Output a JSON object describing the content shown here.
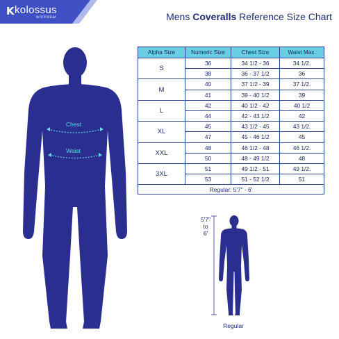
{
  "brand": {
    "mark": "K",
    "name": "kolossus",
    "subtitle": "workwear",
    "band_color": "#3f4fc4"
  },
  "title": {
    "prefix": "Mens ",
    "bold": "Coveralls",
    "suffix": " Reference Size Chart"
  },
  "table": {
    "headers": [
      "Alpha Size",
      "Numeric Size",
      "Chest Size",
      "Waist Max."
    ],
    "groups": [
      {
        "alpha": "S",
        "rows": [
          [
            "36",
            "34 1/2 - 36",
            "34 1/2."
          ],
          [
            "38",
            "36 - 37 1/2",
            "36"
          ]
        ]
      },
      {
        "alpha": "M",
        "rows": [
          [
            "40",
            "37 1/2 - 39",
            "37 1/2."
          ],
          [
            "41",
            "39 - 40 1/2",
            "39"
          ]
        ]
      },
      {
        "alpha": "L",
        "rows": [
          [
            "42",
            "40 1/2 - 42",
            "40 1/2"
          ],
          [
            "44",
            "42 - 43 1/2",
            "42"
          ]
        ]
      },
      {
        "alpha": "XL",
        "rows": [
          [
            "45",
            "43 1/2 - 45",
            "43 1/2."
          ],
          [
            "47",
            "45 - 46 1/2",
            "45"
          ]
        ]
      },
      {
        "alpha": "XXL",
        "rows": [
          [
            "48",
            "46 1/2 - 48",
            "46 1/2."
          ],
          [
            "50",
            "48 - 49 1/2",
            "48"
          ]
        ]
      },
      {
        "alpha": "3XL",
        "rows": [
          [
            "51",
            "49 1/2 - 51",
            "49 1/2."
          ],
          [
            "53",
            "51 - 52 1/2",
            "51"
          ]
        ]
      }
    ],
    "footer": "Regular: 5'7\" - 6'"
  },
  "figure_labels": {
    "chest": "Chest",
    "waist": "Waist"
  },
  "height_label": {
    "top": "5'7\"",
    "middle": "to",
    "bottom": "6'"
  },
  "small_figure_caption": "Regular",
  "colors": {
    "figure": "#2a2f8f",
    "header_cell": "#69cfe0",
    "measure_line": "#66d7ec"
  }
}
